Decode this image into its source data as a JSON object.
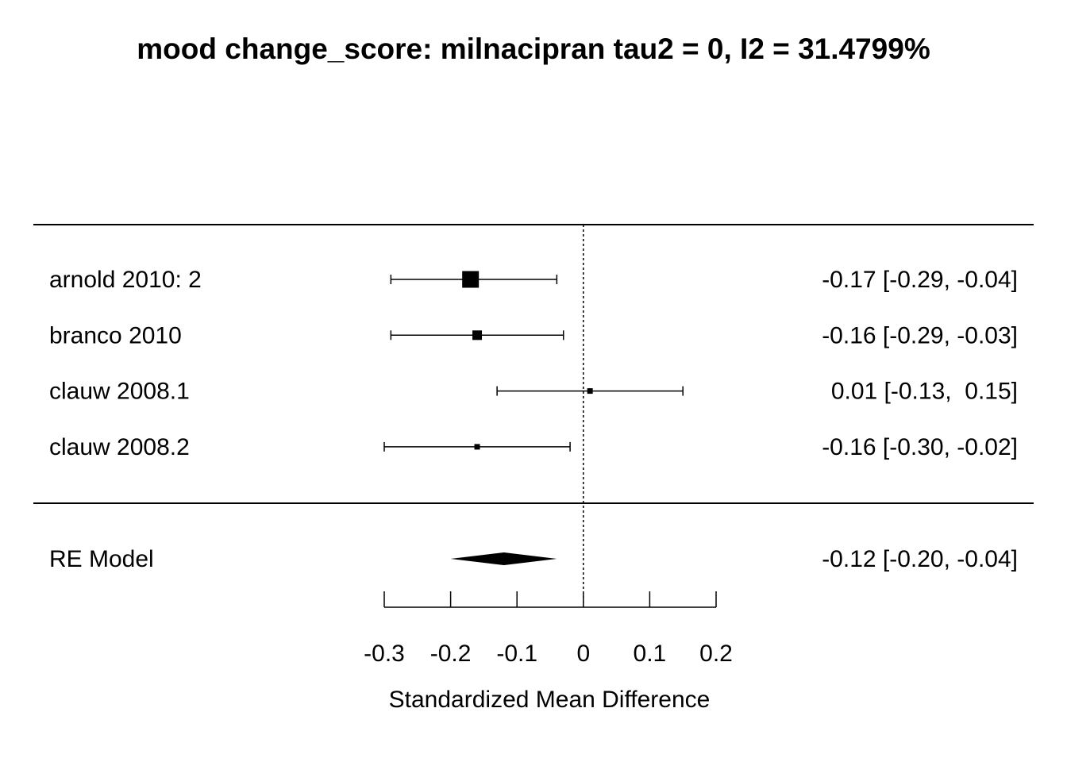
{
  "chart_data": {
    "type": "forest",
    "title": "mood change_score: milnacipran tau2 = 0, I2 = 31.4799%",
    "xlabel": "Standardized Mean Difference",
    "xlim": [
      -0.3,
      0.2
    ],
    "xticks": [
      -0.3,
      -0.2,
      -0.1,
      0,
      0.1,
      0.2
    ],
    "xtick_labels": [
      "-0.3",
      "-0.2",
      "-0.1",
      "0",
      "0.1",
      "0.2"
    ],
    "reference_line": 0,
    "studies": [
      {
        "label": "arnold 2010: 2",
        "estimate": -0.17,
        "ci_low": -0.29,
        "ci_high": -0.04,
        "weight": 3,
        "text": "-0.17 [-0.29, -0.04]"
      },
      {
        "label": "branco 2010",
        "estimate": -0.16,
        "ci_low": -0.29,
        "ci_high": -0.03,
        "weight": 2,
        "text": "-0.16 [-0.29, -0.03]"
      },
      {
        "label": "clauw 2008.1",
        "estimate": 0.01,
        "ci_low": -0.13,
        "ci_high": 0.15,
        "weight": 1,
        "text": "0.01 [-0.13,  0.15]"
      },
      {
        "label": "clauw 2008.2",
        "estimate": -0.16,
        "ci_low": -0.3,
        "ci_high": -0.02,
        "weight": 1,
        "text": "-0.16 [-0.30, -0.02]"
      }
    ],
    "summary": {
      "label": "RE Model",
      "estimate": -0.12,
      "ci_low": -0.2,
      "ci_high": -0.04,
      "text": "-0.12 [-0.20, -0.04]"
    }
  }
}
